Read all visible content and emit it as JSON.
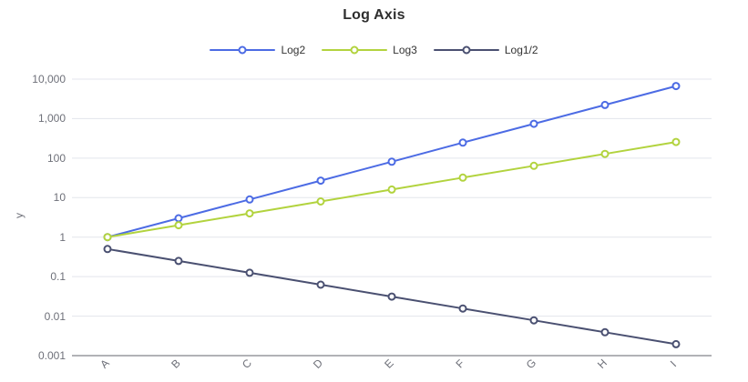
{
  "title": "Log Axis",
  "colors": {
    "background": "#ffffff",
    "title_text": "#2e2e2e",
    "legend_text": "#333333",
    "axis_label_text": "#6e7079",
    "gridline": "#e3e5ec",
    "axis_line": "#63666e",
    "marker_fill": "#ffffff"
  },
  "chart_data": {
    "type": "line",
    "title": "Log Axis",
    "xlabel": "",
    "ylabel": "y",
    "y_scale": "log10",
    "ylim": [
      0.001,
      10000
    ],
    "grid": true,
    "legend_position": "top-center",
    "categories": [
      "A",
      "B",
      "C",
      "D",
      "E",
      "F",
      "G",
      "H",
      "I"
    ],
    "y_tick_labels": [
      "10,000",
      "1,000",
      "100",
      "10",
      "1",
      "0.1",
      "0.01",
      "0.001"
    ],
    "y_tick_exponents": [
      4,
      3,
      2,
      1,
      0,
      -1,
      -2,
      -3
    ],
    "series": [
      {
        "name": "Log2",
        "color": "#4c6be4",
        "values": [
          1,
          3,
          9,
          27,
          81,
          247,
          741,
          2223,
          6669
        ]
      },
      {
        "name": "Log3",
        "color": "#b2d33e",
        "values": [
          1,
          2,
          4,
          8,
          16,
          32,
          64,
          128,
          256
        ]
      },
      {
        "name": "Log1/2",
        "color": "#4a5071",
        "values": [
          0.5,
          0.25,
          0.125,
          0.0625,
          0.03125,
          0.015625,
          0.0078125,
          0.00390625,
          0.001953125
        ]
      }
    ]
  }
}
